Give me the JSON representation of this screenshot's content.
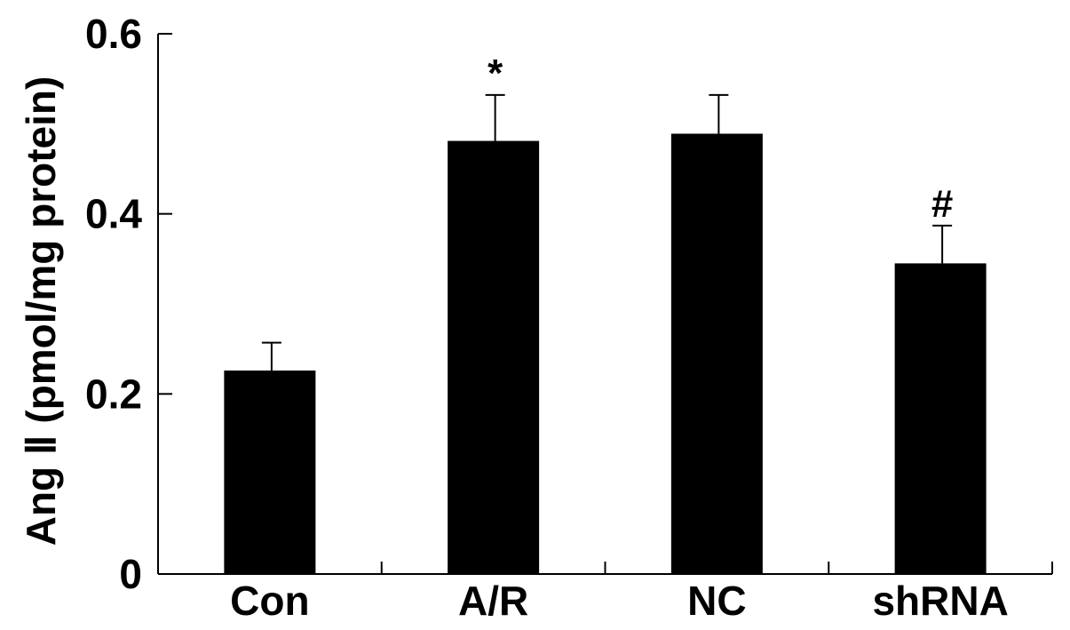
{
  "chart_data": {
    "type": "bar",
    "categories": [
      "Con",
      "A/R",
      "NC",
      "shRNA"
    ],
    "values": [
      0.226,
      0.481,
      0.489,
      0.345
    ],
    "errors": [
      0.031,
      0.051,
      0.043,
      0.042
    ],
    "annotations": [
      "",
      "*",
      "",
      "#"
    ],
    "ylabel": "Ang Ⅱ (pmol/mg protein)",
    "ylim": [
      0,
      0.6
    ],
    "yticks": [
      0,
      0.2,
      0.4,
      0.6
    ],
    "ytick_labels": [
      "0",
      "0.2",
      "0.4",
      "0.6"
    ],
    "grid": false,
    "bar_color": "#000000"
  }
}
